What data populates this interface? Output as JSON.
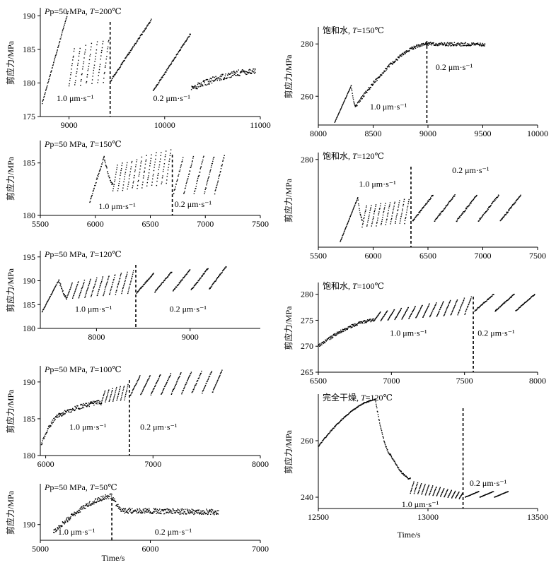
{
  "figure": {
    "x_label": "Time/s",
    "y_label": "剪应力/MPa"
  },
  "chart_data": [
    {
      "id": "L1",
      "type": "scatter",
      "title": {
        "pre": "P",
        "mid": "p=50 MPa, ",
        "t": "T",
        "post": "=200℃"
      },
      "xlabel": "Time/s",
      "ylabel": "剪应力/MPa",
      "xlim": [
        8700,
        11000
      ],
      "ylim": [
        175,
        191
      ],
      "xticks": [
        9000,
        10000,
        11000
      ],
      "yticks": [
        175,
        180,
        185,
        190
      ],
      "switch_time": 9430,
      "labels": [
        {
          "text": "1.0 μm·s⁻¹",
          "x": 8870,
          "y": 177.3
        },
        {
          "text": "0.2 μm·s⁻¹",
          "x": 9880,
          "y": 177.3
        }
      ],
      "segments": [
        {
          "kind": "ramp",
          "t0": 8720,
          "t1": 8990,
          "y0": 177,
          "y1": 190.6
        },
        {
          "kind": "stickslip",
          "t0": 9000,
          "t1": 9420,
          "base": 179.5,
          "peak": 185,
          "drift": 1.5,
          "cycles": 7
        },
        {
          "kind": "ramp",
          "t0": 9430,
          "t1": 9860,
          "y0": 180.2,
          "y1": 189.4
        },
        {
          "kind": "ramp",
          "t0": 9880,
          "t1": 10270,
          "y0": 178.8,
          "y1": 187.3
        },
        {
          "kind": "curve",
          "t0": 10280,
          "t1": 10950,
          "y0": 179.2,
          "y1": 181.8,
          "noise": 0.45
        }
      ]
    },
    {
      "id": "L2",
      "type": "scatter",
      "title": {
        "pre": "P",
        "mid": "p=50 MPa, ",
        "t": "T",
        "post": "=150℃"
      },
      "xlabel": "Time/s",
      "ylabel": "剪应力/MPa",
      "xlim": [
        5500,
        7500
      ],
      "ylim": [
        180,
        187
      ],
      "xticks": [
        5500,
        6000,
        6500,
        7000,
        7500
      ],
      "yticks": [
        180,
        185
      ],
      "switch_time": 6700,
      "labels": [
        {
          "text": "1.0 μm·s⁻¹",
          "x": 6030,
          "y": 180.6
        },
        {
          "text": "0.2 μm·s⁻¹",
          "x": 6720,
          "y": 180.8
        }
      ],
      "segments": [
        {
          "kind": "ramp",
          "t0": 5950,
          "t1": 6080,
          "y0": 181.3,
          "y1": 185.6
        },
        {
          "kind": "curve",
          "t0": 6080,
          "t1": 6160,
          "y0": 185.6,
          "y1": 183.0,
          "noise": 0.15
        },
        {
          "kind": "stickslip",
          "t0": 6160,
          "t1": 6690,
          "base": 182.3,
          "peak": 184.8,
          "drift": 1.5,
          "cycles": 12
        },
        {
          "kind": "stickslip",
          "t0": 6710,
          "t1": 7180,
          "base": 182,
          "peak": 185.5,
          "drift": 0.2,
          "cycles": 5
        }
      ]
    },
    {
      "id": "L3",
      "type": "scatter",
      "title": {
        "pre": "P",
        "mid": "p=50 MPa, ",
        "t": "T",
        "post": "=120℃"
      },
      "xlabel": "Time/s",
      "ylabel": "剪应力/MPa",
      "xlim": [
        7400,
        9750
      ],
      "ylim": [
        180,
        196
      ],
      "xticks": [
        8000,
        9000
      ],
      "yticks": [
        180,
        185,
        190,
        195
      ],
      "switch_time": 8420,
      "labels": [
        {
          "text": "1.0 μm·s⁻¹",
          "x": 7770,
          "y": 183.5
        },
        {
          "text": "0.2 μm·s⁻¹",
          "x": 8780,
          "y": 183.5
        }
      ],
      "segments": [
        {
          "kind": "ramp",
          "t0": 7420,
          "t1": 7600,
          "y0": 183.5,
          "y1": 190.2
        },
        {
          "kind": "curve",
          "t0": 7600,
          "t1": 7680,
          "y0": 190.2,
          "y1": 186.5,
          "noise": 0.3
        },
        {
          "kind": "stickslip",
          "t0": 7680,
          "t1": 8400,
          "base": 186.2,
          "peak": 189.5,
          "drift": 2.5,
          "cycles": 11
        },
        {
          "kind": "stickslip",
          "t0": 8430,
          "t1": 9400,
          "base": 187.5,
          "peak": 191.5,
          "drift": 1.5,
          "cycles": 5
        }
      ]
    },
    {
      "id": "L4",
      "type": "scatter",
      "title": {
        "pre": "P",
        "mid": "p=50 MPa, ",
        "t": "T",
        "post": "=100℃"
      },
      "xlabel": "Time/s",
      "ylabel": "剪应力/MPa",
      "xlim": [
        5950,
        8000
      ],
      "ylim": [
        180,
        192
      ],
      "xticks": [
        6000,
        7000,
        8000
      ],
      "yticks": [
        180,
        185,
        190
      ],
      "switch_time": 6780,
      "labels": [
        {
          "text": "1.0 μm·s⁻¹",
          "x": 6220,
          "y": 183.5
        },
        {
          "text": "0.2 μm·s⁻¹",
          "x": 6880,
          "y": 183.5
        }
      ],
      "segments": [
        {
          "kind": "curve",
          "t0": 5960,
          "t1": 6130,
          "y0": 181.5,
          "y1": 185.5,
          "noise": 0.25
        },
        {
          "kind": "curve",
          "t0": 6130,
          "t1": 6520,
          "y0": 185.5,
          "y1": 187.2,
          "noise": 0.3
        },
        {
          "kind": "stickslip",
          "t0": 6520,
          "t1": 6770,
          "base": 187.2,
          "peak": 188.8,
          "drift": 0.8,
          "cycles": 7
        },
        {
          "kind": "stickslip",
          "t0": 6790,
          "t1": 7650,
          "base": 188.2,
          "peak": 190.8,
          "drift": 0.8,
          "cycles": 9
        }
      ]
    },
    {
      "id": "L5",
      "type": "scatter",
      "title": {
        "pre": "P",
        "mid": "p=50 MPa, ",
        "t": "T",
        "post": "=50℃"
      },
      "xlabel": "Time/s",
      "ylabel": "剪应力/MPa",
      "xlim": [
        5000,
        7000
      ],
      "ylim": [
        188,
        195
      ],
      "xticks": [
        5000,
        6000,
        7000
      ],
      "yticks": [
        190
      ],
      "switch_time": 5650,
      "labels": [
        {
          "text": "1.0 μm·s⁻¹",
          "x": 5160,
          "y": 188.7
        },
        {
          "text": "0.2 μm·s⁻¹",
          "x": 6040,
          "y": 188.7
        }
      ],
      "segments": [
        {
          "kind": "curve",
          "t0": 5120,
          "t1": 5650,
          "y0": 189.0,
          "y1": 193.6,
          "noise": 0.3
        },
        {
          "kind": "curve",
          "t0": 5650,
          "t1": 5760,
          "y0": 193.6,
          "y1": 191.8,
          "noise": 0.3
        },
        {
          "kind": "curve",
          "t0": 5760,
          "t1": 6620,
          "y0": 191.8,
          "y1": 191.6,
          "noise": 0.35
        }
      ]
    },
    {
      "id": "R1",
      "type": "scatter",
      "title": {
        "pre": "饱和水, ",
        "mid": "",
        "t": "T",
        "post": "=150℃"
      },
      "xlabel": "Time/s",
      "ylabel": "剪应力/MPa",
      "xlim": [
        8000,
        10000
      ],
      "ylim": [
        249,
        286
      ],
      "xticks": [
        8000,
        8500,
        9000,
        9500,
        10000
      ],
      "yticks": [
        260,
        280
      ],
      "switch_time": 8990,
      "labels": [
        {
          "text": "1.0 μm·s⁻¹",
          "x": 8470,
          "y": 255
        },
        {
          "text": "0.2 μm·s⁻¹",
          "x": 9070,
          "y": 270
        }
      ],
      "segments": [
        {
          "kind": "ramp",
          "t0": 8150,
          "t1": 8300,
          "y0": 250,
          "y1": 264
        },
        {
          "kind": "curve",
          "t0": 8300,
          "t1": 8340,
          "y0": 264,
          "y1": 256,
          "noise": 0.2
        },
        {
          "kind": "curve",
          "t0": 8340,
          "t1": 8980,
          "y0": 256,
          "y1": 280,
          "noise": 0.6
        },
        {
          "kind": "curve",
          "t0": 8980,
          "t1": 9520,
          "y0": 280,
          "y1": 279.8,
          "noise": 0.7
        }
      ]
    },
    {
      "id": "R2",
      "type": "scatter",
      "title": {
        "pre": "饱和水, ",
        "mid": "",
        "t": "T",
        "post": "=120℃"
      },
      "xlabel": "Time/s",
      "ylabel": "剪应力/MPa",
      "xlim": [
        5500,
        7500
      ],
      "ylim": [
        248,
        282
      ],
      "xticks": [
        5500,
        6000,
        6500,
        7000,
        7500
      ],
      "yticks": [
        280
      ],
      "switch_time": 6345,
      "labels": [
        {
          "text": "1.0 μm·s⁻¹",
          "x": 5870,
          "y": 270
        },
        {
          "text": "0.2 μm·s⁻¹",
          "x": 6720,
          "y": 275
        }
      ],
      "segments": [
        {
          "kind": "ramp",
          "t0": 5700,
          "t1": 5860,
          "y0": 250,
          "y1": 266
        },
        {
          "kind": "curve",
          "t0": 5860,
          "t1": 5900,
          "y0": 266,
          "y1": 258,
          "noise": 0.3
        },
        {
          "kind": "stickslip",
          "t0": 5900,
          "t1": 6330,
          "base": 255.5,
          "peak": 263,
          "drift": 2.5,
          "cycles": 10
        },
        {
          "kind": "stickslip",
          "t0": 6360,
          "t1": 7360,
          "base": 257.5,
          "peak": 267,
          "drift": 0,
          "cycles": 5
        }
      ]
    },
    {
      "id": "R3",
      "type": "scatter",
      "title": {
        "pre": "饱和水, ",
        "mid": "",
        "t": "T",
        "post": "=100℃"
      },
      "xlabel": "Time/s",
      "ylabel": "剪应力/MPa",
      "xlim": [
        6500,
        8000
      ],
      "ylim": [
        265,
        282
      ],
      "xticks": [
        6500,
        7000,
        7500,
        8000
      ],
      "yticks": [
        265,
        270,
        275,
        280
      ],
      "switch_time": 7560,
      "labels": [
        {
          "text": "1.0 μm·s⁻¹",
          "x": 6990,
          "y": 272
        },
        {
          "text": "0.2 μm·s⁻¹",
          "x": 7590,
          "y": 272
        }
      ],
      "segments": [
        {
          "kind": "curve",
          "t0": 6500,
          "t1": 6880,
          "y0": 270,
          "y1": 275,
          "noise": 0.3
        },
        {
          "kind": "stickslip",
          "t0": 6880,
          "t1": 7550,
          "base": 274.8,
          "peak": 276.6,
          "drift": 2.8,
          "cycles": 14
        },
        {
          "kind": "stickslip",
          "t0": 7570,
          "t1": 7990,
          "base": 276.8,
          "peak": 280,
          "drift": 0,
          "cycles": 3
        }
      ]
    },
    {
      "id": "R4",
      "type": "scatter",
      "title": {
        "pre": "完全干燥, ",
        "mid": "",
        "t": "T",
        "post": "=120℃"
      },
      "xlabel": "Time/s",
      "ylabel": "剪应力/MPa",
      "xlim": [
        12500,
        13500
      ],
      "ylim": [
        236,
        276
      ],
      "xticks": [
        12500,
        13000,
        13500
      ],
      "yticks": [
        240,
        260
      ],
      "switch_time": 13160,
      "labels": [
        {
          "text": "1.0 μm·s⁻¹",
          "x": 12880,
          "y": 236.5
        },
        {
          "text": "0.2 μm·s⁻¹",
          "x": 13190,
          "y": 244
        }
      ],
      "segments": [
        {
          "kind": "curve",
          "t0": 12500,
          "t1": 12760,
          "y0": 258,
          "y1": 274.5,
          "noise": 0.2
        },
        {
          "kind": "curve",
          "t0": 12760,
          "t1": 12830,
          "y0": 274.5,
          "y1": 255,
          "noise": 0.3
        },
        {
          "kind": "curve",
          "t0": 12830,
          "t1": 12920,
          "y0": 255,
          "y1": 246.5,
          "noise": 0.3
        },
        {
          "kind": "stickslip",
          "t0": 12920,
          "t1": 13160,
          "base": 241.5,
          "peak": 245.5,
          "drift": -4,
          "cycles": 14
        },
        {
          "kind": "stickslip",
          "t0": 13170,
          "t1": 13370,
          "base": 240,
          "peak": 242,
          "drift": 0,
          "cycles": 3
        }
      ]
    }
  ]
}
